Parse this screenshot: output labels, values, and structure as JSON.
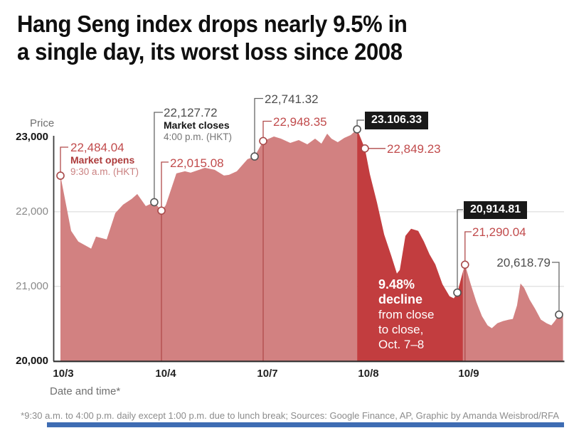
{
  "title": {
    "line1": "Hang Seng index drops nearly 9.5% in",
    "line2": "a single day, its worst loss since 2008"
  },
  "axes": {
    "y_label": "Price",
    "y_ticks": [
      {
        "label": "23,000",
        "value": 23000,
        "bold": true
      },
      {
        "label": "22,000",
        "value": 22000,
        "bold": false
      },
      {
        "label": "21,000",
        "value": 21000,
        "bold": false
      },
      {
        "label": "20,000",
        "value": 20000,
        "bold": true
      }
    ],
    "x_ticks": [
      "10/3",
      "10/4",
      "10/7",
      "10/8",
      "10/9"
    ],
    "x_label": "Date and time*"
  },
  "footer": {
    "note": "*9:30 a.m. to 4:00 p.m. daily except 1:00 p.m. due to lunch break; Sources: Google Finance, AP, Graphic by Amanda Weisbrod/RFA"
  },
  "colors": {
    "area_light": "#d28181",
    "area_dark": "#c23d3f",
    "red_line": "#b04a4a",
    "gray_line": "#666666",
    "grid": "#e2e2e2",
    "axis": "#3d3d3d",
    "badge_bg": "#191919",
    "brand_blue": "#3e6cb3"
  },
  "chart_data": {
    "type": "area",
    "title": "Hang Seng index drops nearly 9.5% in a single day, its worst loss since 2008",
    "xlabel": "Date and time*",
    "ylabel": "Price",
    "ylim": [
      20000,
      23000
    ],
    "gridlines": [
      22000,
      21000
    ],
    "days": [
      "10/3",
      "10/4",
      "10/7",
      "10/8",
      "10/9"
    ],
    "key_points": [
      {
        "label": "22,484.04",
        "sub1": "Market opens",
        "sub2": "9:30 a.m. (HKT)",
        "value": 22484.04,
        "day": 0,
        "t": 0.014,
        "color": "red"
      },
      {
        "label": "22,127.72",
        "sub1": "Market closes",
        "sub2": "4:00 p.m. (HKT)",
        "value": 22127.72,
        "day": 0,
        "t": 0.93,
        "color": "gray"
      },
      {
        "label": "22,015.08",
        "value": 22015.08,
        "day": 1,
        "t": 0,
        "color": "red"
      },
      {
        "label": "22,741.32",
        "value": 22741.32,
        "day": 1,
        "t": 0.916,
        "color": "gray"
      },
      {
        "label": "22,948.35",
        "value": 22948.35,
        "day": 2,
        "t": 0,
        "color": "red"
      },
      {
        "label": "23.106.33",
        "value": 23106.33,
        "day": 2,
        "t": 0.93,
        "color": "gray",
        "badge": true
      },
      {
        "label": "22,849.23",
        "value": 22849.23,
        "day": 3,
        "t": 0.007,
        "color": "red"
      },
      {
        "label": "20,914.81",
        "value": 20914.81,
        "day": 3,
        "t": 0.929,
        "color": "gray",
        "badge": true
      },
      {
        "label": "21,290.04",
        "value": 21290.04,
        "day": 4,
        "t": 0.006,
        "color": "red"
      },
      {
        "label": "20,618.79",
        "value": 20618.79,
        "day": 4,
        "t": 0.95,
        "color": "gray"
      }
    ],
    "decline_annotation": {
      "lines": [
        "9.48%",
        "decline",
        "from close",
        "to close,",
        "Oct. 7–8"
      ],
      "meaning": "9.48% decline from close to close, Oct. 7-8 (23,106.33 to 20,914.81)"
    },
    "samples": [
      [
        0,
        0.014,
        22484.04
      ],
      [
        0,
        0.118,
        21743
      ],
      [
        0,
        0.188,
        21600
      ],
      [
        0,
        0.313,
        21505
      ],
      [
        0,
        0.361,
        21667
      ],
      [
        0,
        0.465,
        21629
      ],
      [
        0,
        0.549,
        21981
      ],
      [
        0,
        0.625,
        22095
      ],
      [
        0,
        0.708,
        22171
      ],
      [
        0,
        0.764,
        22238
      ],
      [
        0,
        0.847,
        22076
      ],
      [
        0,
        0.93,
        22127.72
      ],
      [
        1,
        0,
        22015.08
      ],
      [
        1,
        0.042,
        22086
      ],
      [
        1,
        0.147,
        22514
      ],
      [
        1,
        0.231,
        22543
      ],
      [
        1,
        0.287,
        22524
      ],
      [
        1,
        0.427,
        22590
      ],
      [
        1,
        0.524,
        22562
      ],
      [
        1,
        0.615,
        22486
      ],
      [
        1,
        0.664,
        22495
      ],
      [
        1,
        0.741,
        22543
      ],
      [
        1,
        0.846,
        22705
      ],
      [
        1,
        0.916,
        22741.32
      ],
      [
        2,
        0,
        22948.35
      ],
      [
        2,
        0.106,
        23010
      ],
      [
        2,
        0.176,
        22981
      ],
      [
        2,
        0.268,
        22924
      ],
      [
        2,
        0.352,
        22962
      ],
      [
        2,
        0.437,
        22905
      ],
      [
        2,
        0.514,
        22981
      ],
      [
        2,
        0.577,
        22914
      ],
      [
        2,
        0.634,
        23048
      ],
      [
        2,
        0.676,
        22981
      ],
      [
        2,
        0.739,
        22933
      ],
      [
        2,
        0.803,
        22990
      ],
      [
        2,
        0.866,
        23029
      ],
      [
        2,
        0.93,
        23106.33
      ],
      [
        3,
        0.007,
        22849.23
      ],
      [
        3,
        0.057,
        22505
      ],
      [
        3,
        0.128,
        22124
      ],
      [
        3,
        0.199,
        21695
      ],
      [
        3,
        0.27,
        21410
      ],
      [
        3,
        0.326,
        21171
      ],
      [
        3,
        0.355,
        21219
      ],
      [
        3,
        0.411,
        21676
      ],
      [
        3,
        0.468,
        21771
      ],
      [
        3,
        0.539,
        21743
      ],
      [
        3,
        0.596,
        21600
      ],
      [
        3,
        0.652,
        21429
      ],
      [
        3,
        0.709,
        21295
      ],
      [
        3,
        0.78,
        21029
      ],
      [
        3,
        0.851,
        20867
      ],
      [
        3,
        0.894,
        20838
      ],
      [
        3,
        0.929,
        20914.81
      ],
      [
        3,
        0.985,
        21200
      ],
      [
        4,
        0.006,
        21290.04
      ],
      [
        4,
        0.063,
        21029
      ],
      [
        4,
        0.12,
        20790
      ],
      [
        4,
        0.176,
        20600
      ],
      [
        4,
        0.232,
        20476
      ],
      [
        4,
        0.275,
        20438
      ],
      [
        4,
        0.331,
        20505
      ],
      [
        4,
        0.387,
        20533
      ],
      [
        4,
        0.444,
        20552
      ],
      [
        4,
        0.486,
        20562
      ],
      [
        4,
        0.528,
        20743
      ],
      [
        4,
        0.563,
        21038
      ],
      [
        4,
        0.599,
        20981
      ],
      [
        4,
        0.655,
        20819
      ],
      [
        4,
        0.711,
        20695
      ],
      [
        4,
        0.768,
        20552
      ],
      [
        4,
        0.824,
        20505
      ],
      [
        4,
        0.873,
        20476
      ],
      [
        4,
        0.908,
        20533
      ],
      [
        4,
        0.95,
        20618.79
      ],
      [
        4,
        0.99,
        20650
      ]
    ]
  }
}
